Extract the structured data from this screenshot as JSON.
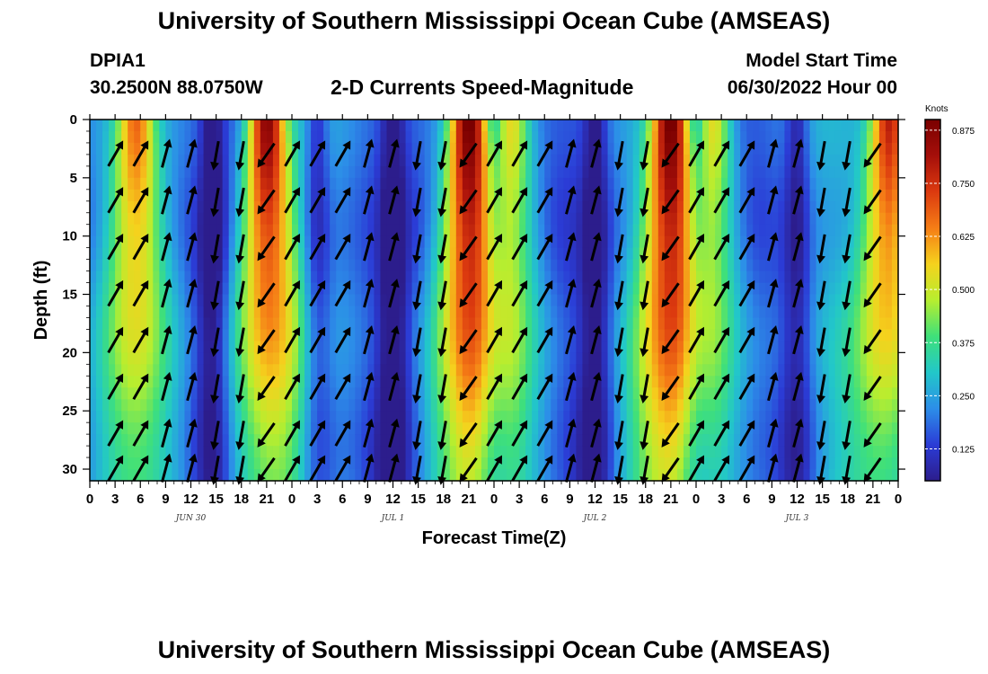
{
  "header": {
    "title": "University of Southern Mississippi Ocean Cube (AMSEAS)",
    "station": "DPIA1",
    "coords": "30.2500N  88.0750W",
    "subtitle": "2-D Currents Speed-Magnitude",
    "model_start_label": "Model Start Time",
    "model_start_value": "06/30/2022 Hour 00"
  },
  "footer": {
    "title": "University of Southern Mississippi Ocean Cube (AMSEAS)"
  },
  "colors": {
    "scale": [
      "#2c1d8c",
      "#2b3cd6",
      "#2c8ee8",
      "#22c7c9",
      "#3fe07a",
      "#b7ee2f",
      "#f5d21d",
      "#f57d16",
      "#dc3a0f",
      "#a50f0a",
      "#7a0000"
    ],
    "arrow": "#000000"
  },
  "chart_data": {
    "type": "heatmap",
    "title": "2-D Currents Speed-Magnitude",
    "xlabel": "Forecast Time(Z)",
    "ylabel": "Depth (ft)",
    "x_tick_labels": [
      "0",
      "3",
      "6",
      "9",
      "12",
      "15",
      "18",
      "21",
      "0",
      "3",
      "6",
      "9",
      "12",
      "15",
      "18",
      "21",
      "0",
      "3",
      "6",
      "9",
      "12",
      "15",
      "18",
      "21",
      "0",
      "3",
      "6",
      "9",
      "12",
      "15",
      "18",
      "21",
      "0"
    ],
    "date_labels": [
      "JUN 30",
      "JUL 1",
      "JUL 2",
      "JUL 3"
    ],
    "x_range_hours": [
      0,
      96
    ],
    "y_ticks": [
      0,
      5,
      10,
      15,
      20,
      25,
      30
    ],
    "ylim": [
      0,
      31
    ],
    "y_inverted": true,
    "colorbar": {
      "label": "Knots",
      "ticks": [
        "0.875",
        "0.750",
        "0.625",
        "0.500",
        "0.375",
        "0.250",
        "0.125"
      ],
      "range": [
        0.05,
        0.9
      ]
    },
    "speed_peaks_knots": [
      {
        "hour": 5.5,
        "peak": 0.6
      },
      {
        "hour": 21,
        "peak": 0.85
      },
      {
        "hour": 45,
        "peak": 0.85
      },
      {
        "hour": 50,
        "peak": 0.5
      },
      {
        "hour": 69,
        "peak": 0.85
      },
      {
        "hour": 74,
        "peak": 0.55
      },
      {
        "hour": 95,
        "peak": 0.8
      }
    ],
    "speed_minima_hours": [
      14.5,
      27,
      36,
      48,
      60,
      72,
      84
    ]
  }
}
